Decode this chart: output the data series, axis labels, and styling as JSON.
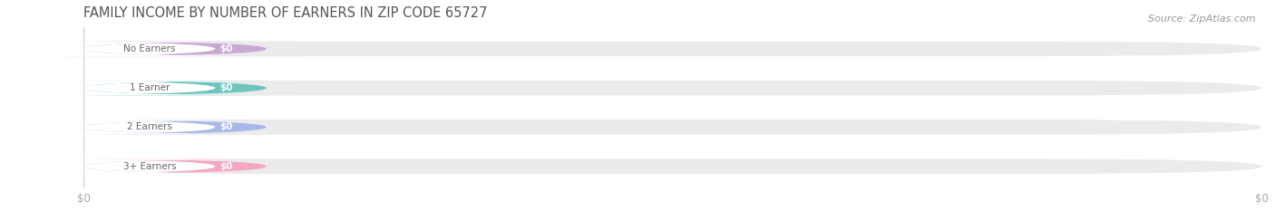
{
  "title": "FAMILY INCOME BY NUMBER OF EARNERS IN ZIP CODE 65727",
  "source": "Source: ZipAtlas.com",
  "categories": [
    "No Earners",
    "1 Earner",
    "2 Earners",
    "3+ Earners"
  ],
  "values": [
    0,
    0,
    0,
    0
  ],
  "bar_colors": [
    "#c9a8d4",
    "#6dc5bc",
    "#a8b8e8",
    "#f4a8c0"
  ],
  "bar_bg_color": "#ebebeb",
  "value_label": "$0",
  "title_color": "#555555",
  "source_color": "#999999",
  "tick_color": "#aaaaaa",
  "figsize": [
    14.06,
    2.33
  ],
  "dpi": 100
}
